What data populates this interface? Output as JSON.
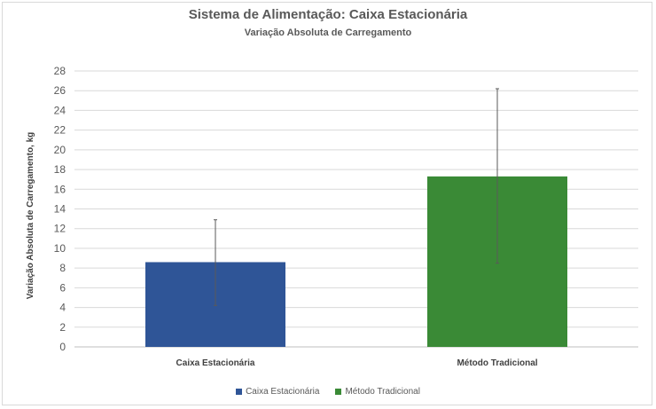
{
  "chart_data": {
    "type": "bar",
    "title": "Sistema de Alimentação: Caixa Estacionária",
    "subtitle": "Variação Absoluta de Carregamento",
    "xlabel": "",
    "ylabel": "Variação Absoluta de Carregamento, kg",
    "ylim": [
      0,
      28
    ],
    "yticks": [
      0,
      2,
      4,
      6,
      8,
      10,
      12,
      14,
      16,
      18,
      20,
      22,
      24,
      26,
      28
    ],
    "categories": [
      "Caixa Estacionária",
      "Método Tradicional"
    ],
    "values": [
      8.6,
      17.3
    ],
    "error_bars": [
      [
        4.2,
        12.9
      ],
      [
        8.5,
        26.2
      ]
    ],
    "colors": [
      "#2f5597",
      "#3a8a36"
    ],
    "legend": [
      "Caixa Estacionária",
      "Método Tradicional"
    ],
    "legend_position": "bottom",
    "grid": true
  }
}
